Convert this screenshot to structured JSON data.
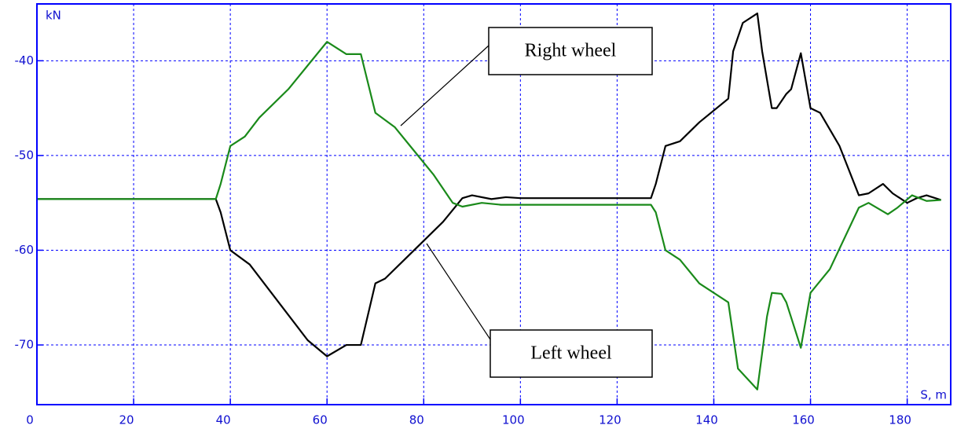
{
  "chart_data": {
    "type": "line",
    "ylabel": "kN",
    "xlabel": "S, m",
    "xlim": [
      0,
      189
    ],
    "xticks": [
      0,
      20,
      40,
      60,
      80,
      100,
      120,
      140,
      160,
      180
    ],
    "ylim": [
      -76.3,
      -34
    ],
    "yticks": [
      -40,
      -50,
      -60,
      -70
    ],
    "grid": true,
    "annotations": [
      "Right wheel",
      "Left wheel"
    ],
    "series": [
      {
        "name": "Left wheel",
        "color": "#000000",
        "x": [
          0,
          37,
          38,
          40,
          44,
          50,
          56,
          60,
          64,
          67,
          70,
          72,
          76,
          80,
          84,
          88,
          90,
          94,
          97,
          100,
          127,
          128,
          130,
          133,
          137,
          143,
          144,
          146,
          149,
          150,
          152,
          153,
          155,
          156,
          158,
          160,
          162,
          166,
          170,
          172,
          175,
          177,
          180,
          182,
          184,
          187
        ],
        "values": [
          -54.6,
          -54.6,
          -56,
          -60,
          -61.5,
          -65.5,
          -69.5,
          -71.2,
          -70,
          -70,
          -63.5,
          -63,
          -61,
          -59,
          -57,
          -54.5,
          -54.2,
          -54.6,
          -54.4,
          -54.5,
          -54.5,
          -53,
          -49,
          -48.5,
          -46.5,
          -44,
          -39,
          -36,
          -35,
          -39,
          -45,
          -45,
          -43.5,
          -43,
          -39.2,
          -45,
          -45.5,
          -49,
          -54.2,
          -54,
          -53,
          -54,
          -55,
          -54.5,
          -54.2,
          -54.7
        ]
      },
      {
        "name": "Right wheel",
        "color": "#1a8a1a",
        "x": [
          0,
          37,
          38,
          40,
          43,
          46,
          52,
          56,
          60,
          64,
          67,
          70,
          74,
          78,
          82,
          86,
          88,
          92,
          96,
          100,
          127,
          128,
          130,
          133,
          137,
          143,
          145,
          149,
          151,
          152,
          154,
          155,
          158,
          160,
          164,
          170,
          172,
          176,
          178,
          181,
          184,
          187
        ],
        "values": [
          -54.6,
          -54.6,
          -53,
          -49,
          -48,
          -46,
          -43,
          -40.5,
          -38,
          -39.3,
          -39.3,
          -45.5,
          -47,
          -49.5,
          -52,
          -55,
          -55.4,
          -55,
          -55.2,
          -55.2,
          -55.2,
          -56,
          -60,
          -61,
          -63.5,
          -65.5,
          -72.5,
          -74.7,
          -67,
          -64.5,
          -64.6,
          -65.5,
          -70.3,
          -64.5,
          -62,
          -55.5,
          -55,
          -56.2,
          -55.5,
          -54.2,
          -54.8,
          -54.7
        ]
      }
    ]
  }
}
